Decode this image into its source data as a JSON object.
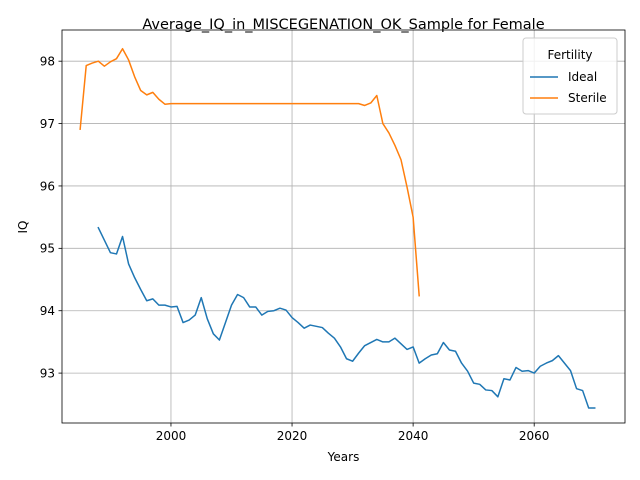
{
  "chart_data": {
    "type": "line",
    "title": "Average_IQ_in_MISCEGENATION_OK_Sample for Female",
    "xlabel": "Years",
    "ylabel": "IQ",
    "xlim": [
      1982,
      2075
    ],
    "ylim": [
      92.2,
      98.5
    ],
    "xticks": [
      2000,
      2020,
      2040,
      2060
    ],
    "yticks": [
      93,
      94,
      95,
      96,
      97,
      98
    ],
    "grid": true,
    "legend": {
      "title": "Fertility",
      "placement": "top-right"
    },
    "series": [
      {
        "name": "Ideal",
        "color": "#1f77b4",
        "x": [
          1988,
          1989,
          1990,
          1991,
          1992,
          1993,
          1994,
          1995,
          1996,
          1997,
          1998,
          1999,
          2000,
          2001,
          2002,
          2003,
          2004,
          2005,
          2006,
          2007,
          2008,
          2009,
          2010,
          2011,
          2012,
          2013,
          2014,
          2015,
          2016,
          2017,
          2018,
          2019,
          2020,
          2021,
          2022,
          2023,
          2024,
          2025,
          2026,
          2027,
          2028,
          2029,
          2030,
          2031,
          2032,
          2033,
          2034,
          2035,
          2036,
          2037,
          2038,
          2039,
          2040,
          2041,
          2042,
          2043,
          2044,
          2045,
          2046,
          2047,
          2048,
          2049,
          2050,
          2051,
          2052,
          2053,
          2054,
          2055,
          2056,
          2057,
          2058,
          2059,
          2060,
          2061,
          2062,
          2063,
          2064,
          2065,
          2066,
          2067,
          2068,
          2069,
          2070
        ],
        "values": [
          95.33,
          95.13,
          94.93,
          94.91,
          95.19,
          94.75,
          94.53,
          94.34,
          94.16,
          94.19,
          94.09,
          94.09,
          94.06,
          94.07,
          93.81,
          93.85,
          93.93,
          94.21,
          93.87,
          93.63,
          93.53,
          93.81,
          94.09,
          94.26,
          94.21,
          94.06,
          94.06,
          93.93,
          93.99,
          94.0,
          94.04,
          94.01,
          93.89,
          93.81,
          93.72,
          93.77,
          93.75,
          93.73,
          93.64,
          93.56,
          93.42,
          93.23,
          93.19,
          93.32,
          93.44,
          93.49,
          93.54,
          93.5,
          93.5,
          93.56,
          93.47,
          93.38,
          93.42,
          93.16,
          93.23,
          93.29,
          93.31,
          93.49,
          93.37,
          93.35,
          93.16,
          93.03,
          92.84,
          92.82,
          92.73,
          92.72,
          92.62,
          92.91,
          92.89,
          93.09,
          93.03,
          93.04,
          93.0,
          93.11,
          93.16,
          93.2,
          93.28,
          93.16,
          93.04,
          92.75,
          92.72,
          92.44,
          92.44
        ]
      },
      {
        "name": "Sterile",
        "color": "#ff7f0e",
        "x": [
          1985,
          1986,
          1987,
          1988,
          1989,
          1990,
          1991,
          1992,
          1993,
          1994,
          1995,
          1996,
          1997,
          1998,
          1999,
          2000,
          2005,
          2010,
          2015,
          2020,
          2025,
          2030,
          2031,
          2032,
          2033,
          2034,
          2035,
          2036,
          2037,
          2038,
          2039,
          2040,
          2041
        ],
        "values": [
          96.91,
          97.93,
          97.97,
          98.0,
          97.92,
          97.99,
          98.04,
          98.2,
          98.02,
          97.75,
          97.53,
          97.46,
          97.5,
          97.39,
          97.31,
          97.32,
          97.32,
          97.32,
          97.32,
          97.32,
          97.32,
          97.32,
          97.32,
          97.29,
          97.33,
          97.45,
          97.0,
          96.85,
          96.65,
          96.42,
          95.98,
          95.5,
          94.24
        ]
      }
    ]
  }
}
